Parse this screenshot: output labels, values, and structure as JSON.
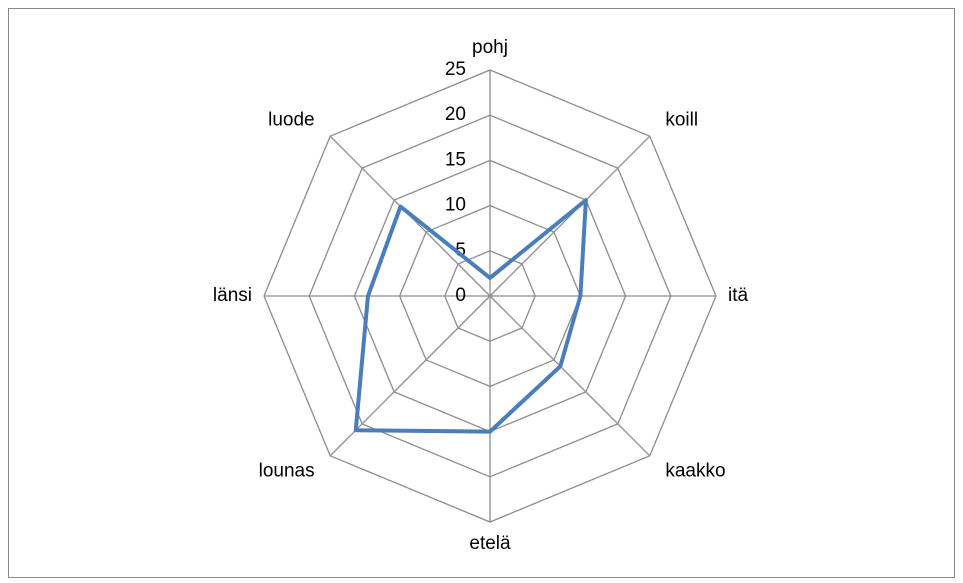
{
  "chart_data": {
    "type": "radar",
    "categories": [
      "pohj",
      "koill",
      "itä",
      "kaakko",
      "etelä",
      "lounas",
      "länsi",
      "luode"
    ],
    "series": [
      {
        "color": "#4a7ebb",
        "values": [
          2,
          15,
          10,
          11,
          15,
          21,
          13.5,
          14
        ]
      }
    ],
    "rlim": [
      0,
      25
    ],
    "rticks": [
      0,
      5,
      10,
      15,
      20,
      25
    ],
    "grid": true
  }
}
